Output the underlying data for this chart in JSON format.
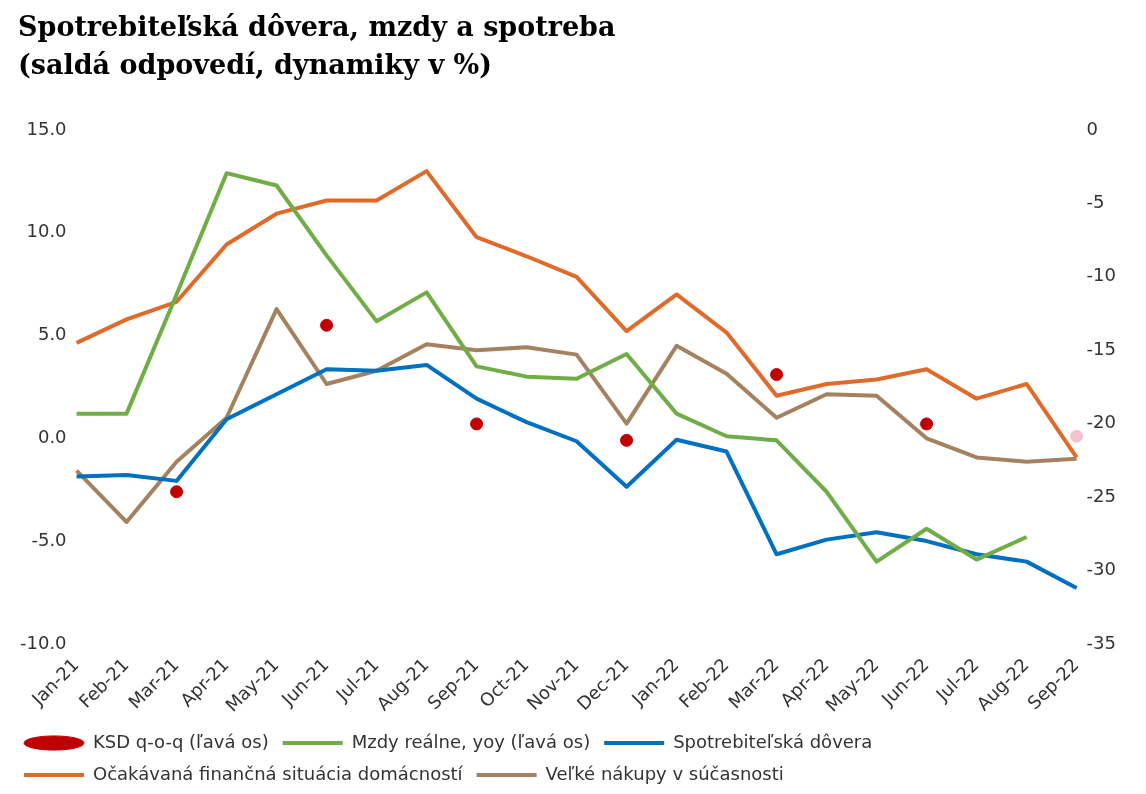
{
  "chart_data": {
    "type": "line",
    "title": "Spotrebiteľská dôvera, mzdy a spotreba",
    "subtitle": "(saldá odpovedí, dynamiky v %)",
    "categories": [
      "Jan-21",
      "Feb-21",
      "Mar-21",
      "Apr-21",
      "May-21",
      "Jun-21",
      "Jul-21",
      "Aug-21",
      "Sep-21",
      "Oct-21",
      "Nov-21",
      "Dec-21",
      "Jan-22",
      "Feb-22",
      "Mar-22",
      "Apr-22",
      "May-22",
      "Jun-22",
      "Jul-22",
      "Aug-22",
      "Sep-22"
    ],
    "series": [
      {
        "name": "KSD q-o-q (ľavá os)",
        "type": "scatter",
        "marker": "circle",
        "color": "#c00000",
        "colors": [
          "#c00000",
          "#c00000",
          "#c00000",
          "#c00000",
          "#c00000",
          "#c00000",
          "#c00000",
          "#c00000",
          "#c00000",
          "#c00000",
          "#c00000",
          "#c00000",
          "#c00000",
          "#c00000",
          "#c00000",
          "#c00000",
          "#c00000",
          "#c00000",
          "#c00000",
          "#c00000",
          "#f4c2cc"
        ],
        "values": [
          null,
          null,
          -2.6,
          null,
          null,
          5.5,
          null,
          null,
          0.7,
          null,
          null,
          -0.1,
          null,
          null,
          3.1,
          null,
          null,
          0.7,
          null,
          null,
          0.1
        ]
      },
      {
        "name": "Mzdy reálne, yoy (ľavá os)",
        "color": "#70ad47",
        "values": [
          1.2,
          1.2,
          7.0,
          12.9,
          12.3,
          8.9,
          5.7,
          7.1,
          3.5,
          3.0,
          2.9,
          4.1,
          1.2,
          0.1,
          -0.1,
          -2.6,
          -6.0,
          -4.4,
          -5.9,
          -4.8,
          null
        ]
      },
      {
        "name": "Spotrebiteľská dôvera",
        "axis": "y2",
        "color": "#0070c0",
        "values": [
          -23.6,
          -23.5,
          -23.9,
          -19.7,
          -18.0,
          -16.3,
          -16.4,
          -16.0,
          -18.3,
          -19.9,
          -21.2,
          -24.3,
          -21.1,
          -21.9,
          -28.9,
          -27.9,
          -27.4,
          -28.0,
          -28.9,
          -29.4,
          -31.2
        ]
      },
      {
        "name": "Očakávaná finančná situácia domácností",
        "axis": "y2",
        "color": "#e06a2a",
        "values": [
          -14.5,
          -12.9,
          -11.7,
          -7.8,
          -5.7,
          -4.8,
          -4.8,
          -2.8,
          -7.3,
          -8.6,
          -10.0,
          -13.7,
          -11.2,
          -13.8,
          -18.1,
          -17.3,
          -17.0,
          -16.3,
          -18.3,
          -17.3,
          -22.3
        ]
      },
      {
        "name": "Veľké nákupy v súčasnosti",
        "axis": "y2",
        "color": "#a5825f",
        "values": [
          -23.2,
          -26.7,
          -22.6,
          -19.6,
          -12.2,
          -17.3,
          -16.4,
          -14.6,
          -15.0,
          -14.8,
          -15.3,
          -20.0,
          -14.7,
          -16.6,
          -19.6,
          -18.0,
          -18.1,
          -21.0,
          -22.3,
          -22.6,
          -22.4
        ]
      }
    ],
    "ylim": [
      -10,
      15
    ],
    "yticks": [
      {
        "value": -10,
        "label": "-10.0"
      },
      {
        "value": -5,
        "label": "-5.0"
      },
      {
        "value": 0,
        "label": "0.0"
      },
      {
        "value": 5,
        "label": "5.0"
      },
      {
        "value": 10,
        "label": "10.0"
      },
      {
        "value": 15,
        "label": "15.0"
      }
    ],
    "y2lim": [
      -35,
      0
    ],
    "y2ticks": [
      -35,
      -30,
      -25,
      -20,
      -15,
      -10,
      -5,
      0
    ],
    "grid": false,
    "legend": "bottom",
    "marker": "none",
    "line_style": "solid"
  }
}
